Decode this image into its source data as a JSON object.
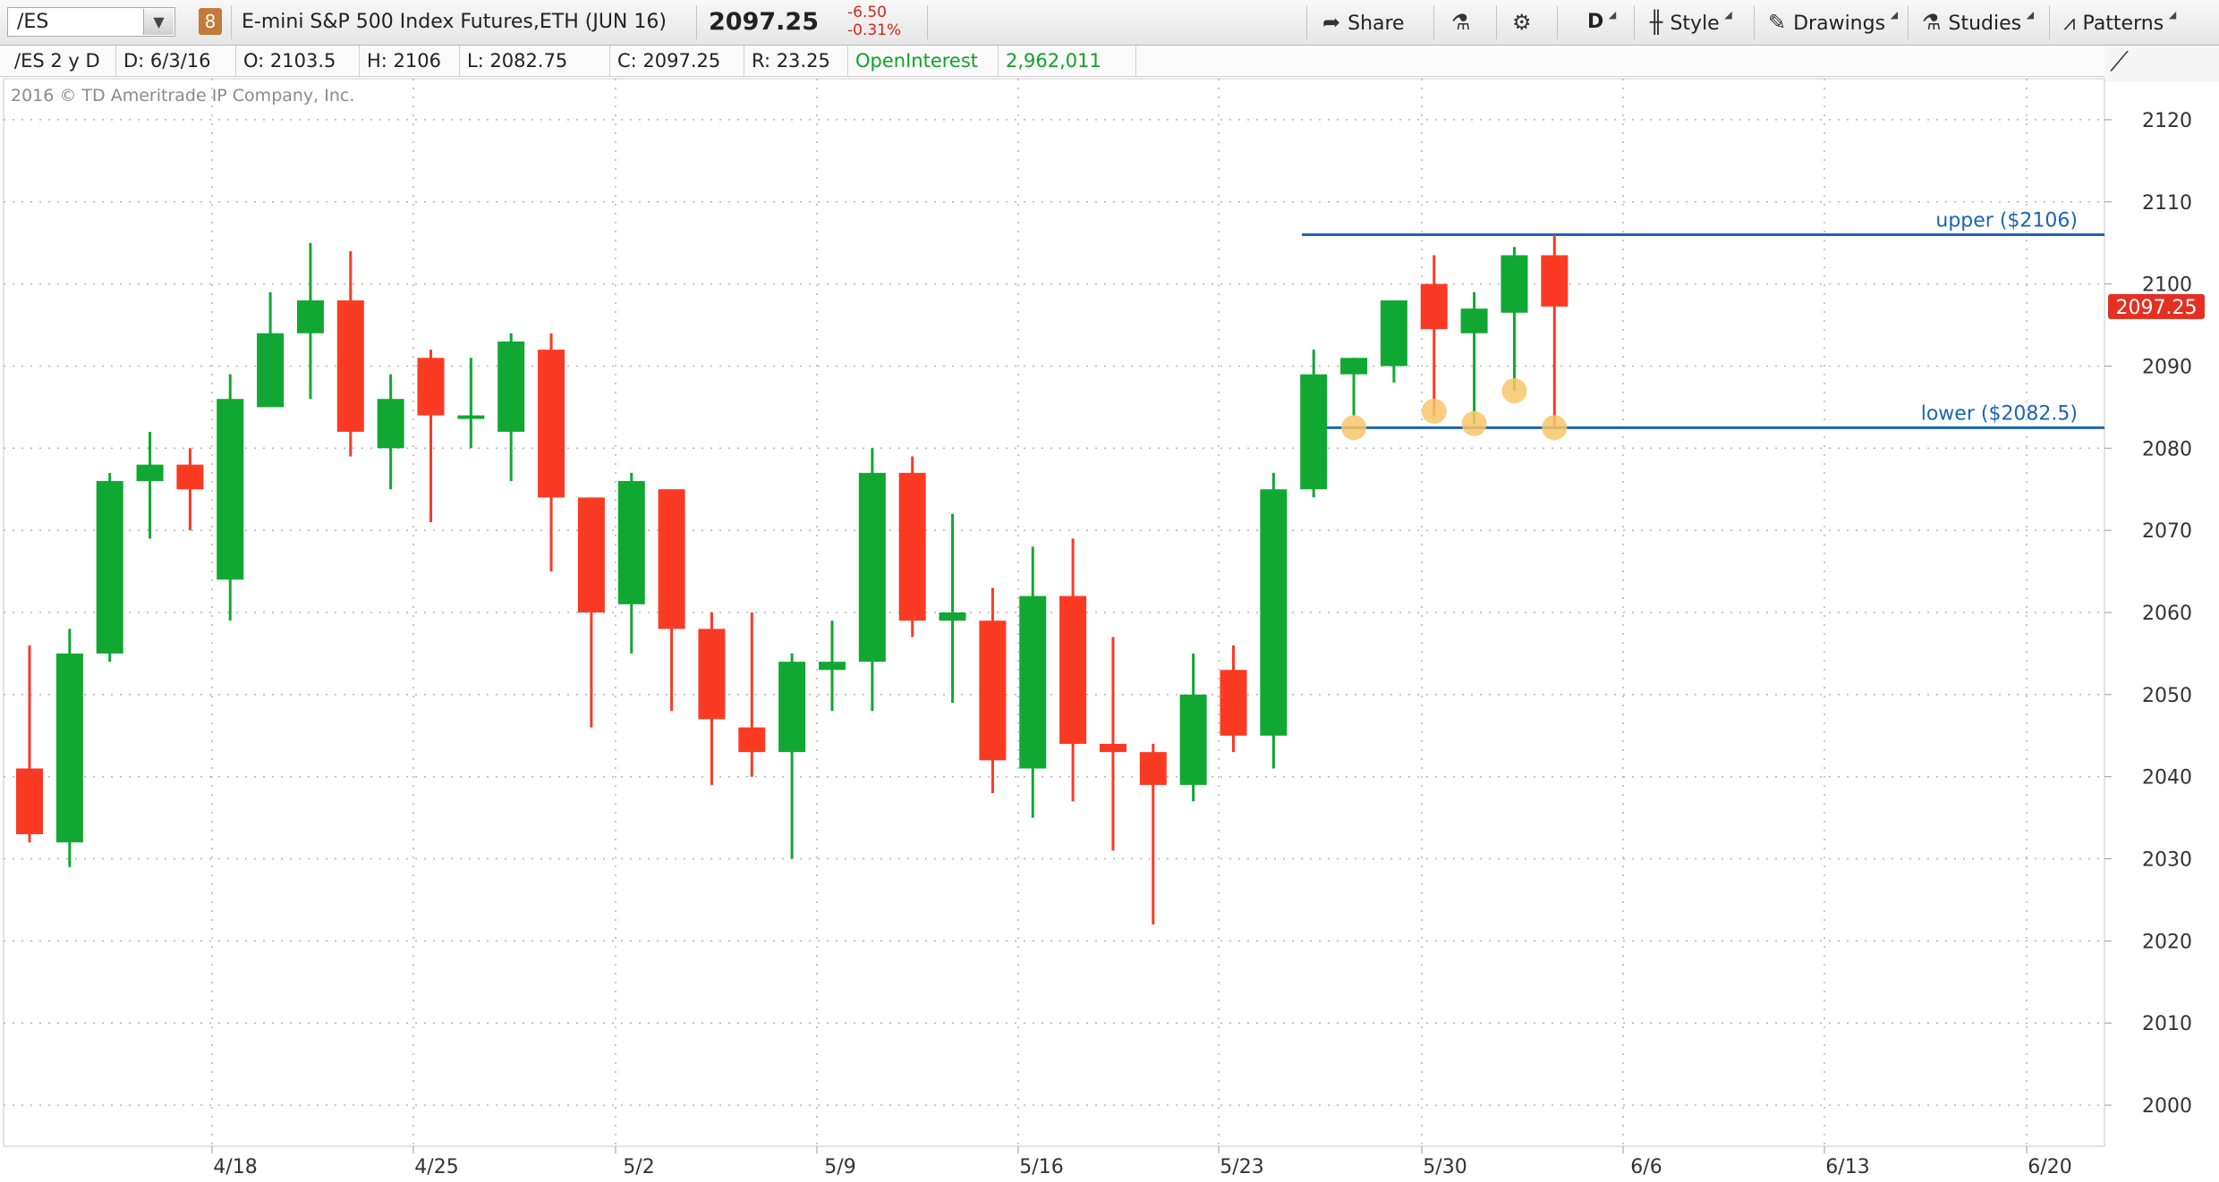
{
  "toolbar": {
    "symbol": "/ES",
    "link_badge": "8",
    "description": "E-mini S&P 500 Index Futures,ETH (JUN 16)",
    "last_price": "2097.25",
    "net_change": "-6.50",
    "pct_change": "-0.31%",
    "share_label": "Share",
    "timeframe_label": "D",
    "style_label": "Style",
    "drawings_label": "Drawings",
    "studies_label": "Studies",
    "patterns_label": "Patterns"
  },
  "infobar": {
    "symbol_period": "/ES 2 y D",
    "date": "D: 6/3/16",
    "open": "O: 2103.5",
    "high": "H: 2106",
    "low": "L: 2082.75",
    "close": "C: 2097.25",
    "range": "R: 23.25",
    "oi_label": "OpenInterest",
    "oi_value": "2,962,011"
  },
  "copyright": "2016 © TD Ameritrade IP Company, Inc.",
  "colors": {
    "up": "#10a832",
    "down": "#fb3a24",
    "level_line": "#1c64b4",
    "marker": "#f7c66a",
    "price_badge": "#e42f22"
  },
  "chart_data": {
    "type": "candlestick",
    "ylim": [
      1995,
      2125
    ],
    "y_ticks": [
      2000,
      2010,
      2020,
      2030,
      2040,
      2050,
      2060,
      2070,
      2080,
      2090,
      2100,
      2110,
      2120
    ],
    "x_tick_labels": [
      "4/18",
      "4/25",
      "5/2",
      "5/9",
      "5/16",
      "5/23",
      "5/30",
      "6/6",
      "6/13",
      "6/20"
    ],
    "price_badge": "2097.25",
    "levels": [
      {
        "label": "upper ($2106)",
        "value": 2106
      },
      {
        "label": "lower ($2082.5)",
        "value": 2082.5
      }
    ],
    "ohlc": [
      {
        "o": 2041,
        "h": 2056,
        "l": 2032,
        "c": 2033
      },
      {
        "o": 2032,
        "h": 2058,
        "l": 2029,
        "c": 2055
      },
      {
        "o": 2055,
        "h": 2077,
        "l": 2054,
        "c": 2076
      },
      {
        "o": 2076,
        "h": 2082,
        "l": 2069,
        "c": 2078
      },
      {
        "o": 2078,
        "h": 2080,
        "l": 2070,
        "c": 2075
      },
      {
        "o": 2064,
        "h": 2089,
        "l": 2059,
        "c": 2086
      },
      {
        "o": 2085,
        "h": 2099,
        "l": 2085,
        "c": 2094
      },
      {
        "o": 2094,
        "h": 2105,
        "l": 2086,
        "c": 2098
      },
      {
        "o": 2098,
        "h": 2104,
        "l": 2079,
        "c": 2082
      },
      {
        "o": 2080,
        "h": 2089,
        "l": 2075,
        "c": 2086
      },
      {
        "o": 2091,
        "h": 2092,
        "l": 2071,
        "c": 2084
      },
      {
        "o": 2084,
        "h": 2091,
        "l": 2080,
        "c": 2084
      },
      {
        "o": 2082,
        "h": 2094,
        "l": 2076,
        "c": 2093
      },
      {
        "o": 2092,
        "h": 2094,
        "l": 2065,
        "c": 2074
      },
      {
        "o": 2074,
        "h": 2074,
        "l": 2046,
        "c": 2060
      },
      {
        "o": 2061,
        "h": 2077,
        "l": 2055,
        "c": 2076
      },
      {
        "o": 2075,
        "h": 2075,
        "l": 2048,
        "c": 2058
      },
      {
        "o": 2058,
        "h": 2060,
        "l": 2039,
        "c": 2047
      },
      {
        "o": 2046,
        "h": 2060,
        "l": 2040,
        "c": 2043
      },
      {
        "o": 2043,
        "h": 2055,
        "l": 2030,
        "c": 2054
      },
      {
        "o": 2053,
        "h": 2059,
        "l": 2048,
        "c": 2054
      },
      {
        "o": 2054,
        "h": 2080,
        "l": 2048,
        "c": 2077
      },
      {
        "o": 2077,
        "h": 2079,
        "l": 2057,
        "c": 2059
      },
      {
        "o": 2059,
        "h": 2072,
        "l": 2049,
        "c": 2060
      },
      {
        "o": 2059,
        "h": 2063,
        "l": 2038,
        "c": 2042
      },
      {
        "o": 2041,
        "h": 2068,
        "l": 2035,
        "c": 2062
      },
      {
        "o": 2062,
        "h": 2069,
        "l": 2037,
        "c": 2044
      },
      {
        "o": 2044,
        "h": 2057,
        "l": 2031,
        "c": 2043
      },
      {
        "o": 2043,
        "h": 2044,
        "l": 2022,
        "c": 2039
      },
      {
        "o": 2039,
        "h": 2055,
        "l": 2037,
        "c": 2050
      },
      {
        "o": 2053,
        "h": 2056,
        "l": 2043,
        "c": 2045
      },
      {
        "o": 2045,
        "h": 2077,
        "l": 2041,
        "c": 2075
      },
      {
        "o": 2075,
        "h": 2092,
        "l": 2074,
        "c": 2089
      },
      {
        "o": 2089,
        "h": 2091,
        "l": 2084,
        "c": 2091
      },
      {
        "o": 2090,
        "h": 2098,
        "l": 2088,
        "c": 2098
      },
      {
        "o": 2100,
        "h": 2103.5,
        "l": 2084,
        "c": 2094.5
      },
      {
        "o": 2094,
        "h": 2099,
        "l": 2083,
        "c": 2097
      },
      {
        "o": 2096.5,
        "h": 2104.5,
        "l": 2087,
        "c": 2103.5
      },
      {
        "o": 2103.5,
        "h": 2106,
        "l": 2082.75,
        "c": 2097.25
      }
    ],
    "marker_values": [
      {
        "bar": 33,
        "value": 2082.5
      },
      {
        "bar": 35,
        "value": 2084.5
      },
      {
        "bar": 36,
        "value": 2083
      },
      {
        "bar": 37,
        "value": 2087
      },
      {
        "bar": 38,
        "value": 2082.5
      }
    ]
  }
}
